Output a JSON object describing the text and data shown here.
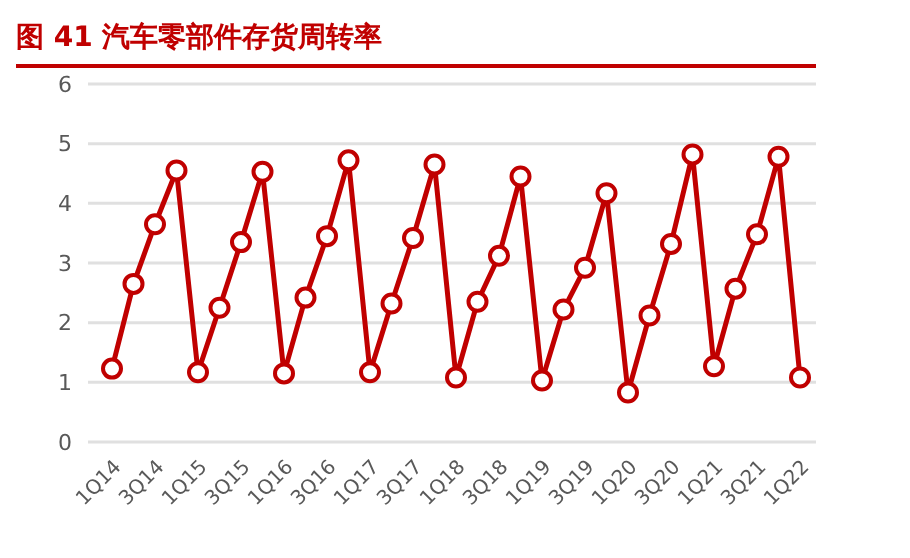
{
  "chart_data": {
    "type": "line",
    "title": "图 41  汽车零部件存货周转率",
    "categories": [
      "1Q14",
      null,
      "3Q14",
      null,
      "1Q15",
      null,
      "3Q15",
      null,
      "1Q16",
      null,
      "3Q16",
      null,
      "1Q17",
      null,
      "3Q17",
      null,
      "1Q18",
      null,
      "3Q18",
      null,
      "1Q19",
      null,
      "3Q19",
      null,
      "1Q20",
      null,
      "3Q20",
      null,
      "1Q21",
      null,
      "3Q21",
      null,
      "1Q22"
    ],
    "series": [
      {
        "color": "#c00000",
        "values": [
          1.23,
          2.65,
          3.65,
          4.55,
          1.17,
          2.25,
          3.35,
          4.53,
          1.15,
          2.42,
          3.45,
          4.72,
          1.17,
          2.32,
          3.42,
          4.65,
          1.08,
          2.35,
          3.12,
          4.45,
          1.03,
          2.22,
          2.92,
          4.17,
          0.83,
          2.12,
          3.32,
          4.82,
          1.27,
          2.57,
          3.48,
          4.78,
          1.08
        ]
      }
    ],
    "ylim": [
      0,
      6
    ],
    "yticks": [
      0,
      1,
      2,
      3,
      4,
      5,
      6
    ],
    "grid": "y",
    "marker": "circle",
    "line_style": "solid"
  }
}
